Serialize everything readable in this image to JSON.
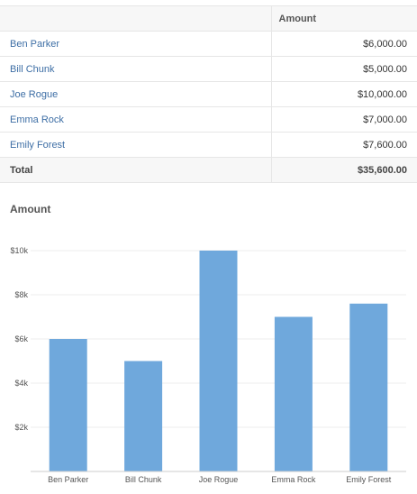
{
  "table": {
    "columns": [
      "",
      "Amount"
    ],
    "rows": [
      {
        "name": "Ben Parker",
        "amount": "$6,000.00"
      },
      {
        "name": "Bill Chunk",
        "amount": "$5,000.00"
      },
      {
        "name": "Joe Rogue",
        "amount": "$10,000.00"
      },
      {
        "name": "Emma Rock",
        "amount": "$7,000.00"
      },
      {
        "name": "Emily Forest",
        "amount": "$7,600.00"
      }
    ],
    "total": {
      "label": "Total",
      "amount": "$35,600.00"
    }
  },
  "chart_title": "Amount",
  "chart_data": {
    "type": "bar",
    "title": "Amount",
    "categories": [
      "Ben Parker",
      "Bill Chunk",
      "Joe Rogue",
      "Emma Rock",
      "Emily Forest"
    ],
    "values": [
      6000,
      5000,
      10000,
      7000,
      7600
    ],
    "ylim": [
      0,
      10000
    ],
    "yticks": [
      2000,
      4000,
      6000,
      8000,
      10000
    ],
    "ytick_labels": [
      "$2k",
      "$4k",
      "$6k",
      "$8k",
      "$10k"
    ],
    "grid": true,
    "bar_color": "#6fa8dc"
  }
}
